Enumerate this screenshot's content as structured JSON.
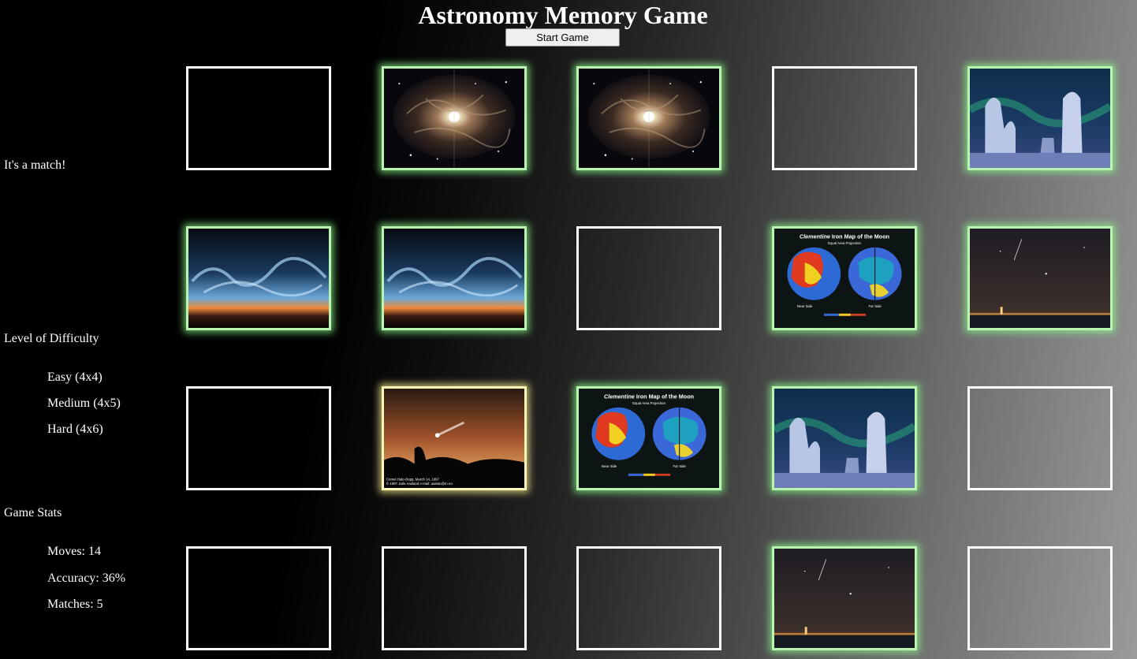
{
  "header": {
    "title": "Astronomy Memory Game",
    "start_button": "Start Game"
  },
  "status": {
    "message": "It's a match!"
  },
  "difficulty": {
    "heading": "Level of Difficulty",
    "levels": [
      "Easy (4x4)",
      "Medium (4x5)",
      "Hard (4x6)"
    ]
  },
  "stats": {
    "heading": "Game Stats",
    "moves": "Moves: 14",
    "accuracy": "Accuracy: 36%",
    "matches": "Matches: 5"
  },
  "board": {
    "rows": 4,
    "cols": 5,
    "cards": [
      {
        "state": "facedown",
        "image": ""
      },
      {
        "state": "matched",
        "image": "nebula-icon"
      },
      {
        "state": "matched",
        "image": "nebula-icon"
      },
      {
        "state": "facedown",
        "image": ""
      },
      {
        "state": "matched",
        "image": "snowy-trees-aurora-icon"
      },
      {
        "state": "matched",
        "image": "noctilucent-clouds-icon"
      },
      {
        "state": "matched",
        "image": "noctilucent-clouds-icon"
      },
      {
        "state": "facedown",
        "image": ""
      },
      {
        "state": "matched",
        "image": "moon-iron-map-icon"
      },
      {
        "state": "matched",
        "image": "night-sky-lake-icon"
      },
      {
        "state": "facedown",
        "image": ""
      },
      {
        "state": "selected",
        "image": "comet-hale-bopp-icon"
      },
      {
        "state": "matched",
        "image": "moon-iron-map-icon"
      },
      {
        "state": "matched",
        "image": "snowy-trees-aurora-icon"
      },
      {
        "state": "facedown",
        "image": ""
      },
      {
        "state": "facedown",
        "image": ""
      },
      {
        "state": "facedown",
        "image": ""
      },
      {
        "state": "facedown",
        "image": ""
      },
      {
        "state": "matched",
        "image": "night-sky-lake-icon"
      },
      {
        "state": "facedown",
        "image": ""
      }
    ]
  },
  "image_text": {
    "moon_title_italic": "Clementine",
    "moon_title_rest": " Iron Map of the Moon",
    "moon_subtitle": "Equal Area Projection",
    "moon_near": "Near Side",
    "moon_far": "Far Side",
    "comet_caption_1": "Comet Hale-Bopp, March 14, 1997",
    "comet_caption_2": "© 1997 Jarle Aasland e-mail: aaslan@rn.no"
  }
}
